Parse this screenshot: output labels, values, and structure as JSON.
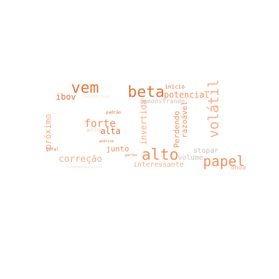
{
  "palette": {
    "dark": "#e8733a",
    "mid": "#f0915f",
    "light": "#f5b08a",
    "pale": "#f8c9ad",
    "faint": "#fbdccb",
    "gray": "#c9c3c0"
  },
  "words": {
    "vem": "vem",
    "beta": "beta",
    "inicio": "início",
    "potencial": "potencial",
    "ibov": "ibov",
    "demonstrando": "demonstrando",
    "volatil": "volátil",
    "proximo": "próximo",
    "padrao": "padrão",
    "forte": "forte",
    "alta": "alta",
    "gollos": "gollos",
    "invertida": "invertida",
    "perdendo": "Perdendo",
    "razoavel": "razoável",
    "analise": "análise",
    "geral": "geral",
    "junto": "junto",
    "alto": "alto",
    "stopar": "stopar",
    "correcao": "correção",
    "volume": "volume",
    "papel": "papel",
    "interessante": "interessante",
    "onda": "onda",
    "faint1": "nuvinspiração",
    "faint2": "mercado",
    "faint3": "feito",
    "partes": "partes",
    "faint4": "fundamentagráfico"
  }
}
